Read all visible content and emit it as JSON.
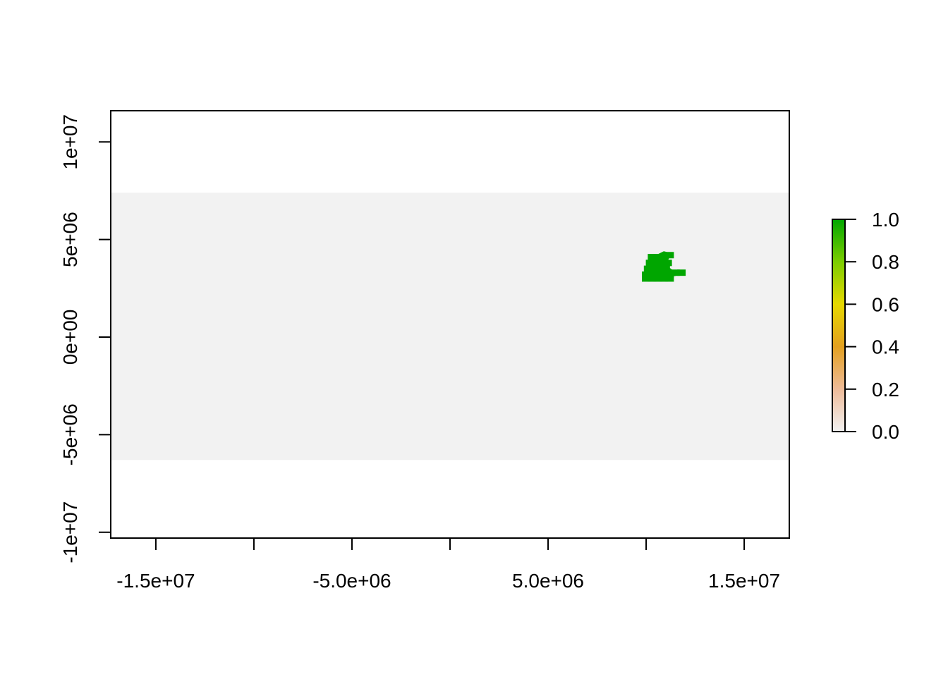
{
  "chart_data": {
    "type": "heatmap",
    "title": "",
    "xlabel": "",
    "ylabel": "",
    "xlim": [
      -17300000,
      17300000
    ],
    "ylim": [
      -10300000,
      11600000
    ],
    "x_ticks": [
      {
        "value": -15000000,
        "label": "-1.5e+07"
      },
      {
        "value": -10000000,
        "label": ""
      },
      {
        "value": -5000000,
        "label": "-5.0e+06"
      },
      {
        "value": 0,
        "label": ""
      },
      {
        "value": 5000000,
        "label": "5.0e+06"
      },
      {
        "value": 10000000,
        "label": ""
      },
      {
        "value": 15000000,
        "label": "1.5e+07"
      }
    ],
    "y_ticks": [
      {
        "value": -10000000,
        "label": "-1e+07"
      },
      {
        "value": -5000000,
        "label": "-5e+06"
      },
      {
        "value": 0,
        "label": "0e+00"
      },
      {
        "value": 5000000,
        "label": "5e+06"
      },
      {
        "value": 10000000,
        "label": "1e+07"
      }
    ],
    "raster_extent": {
      "xmin": -17300000,
      "xmax": 17300000,
      "ymin": -6300000,
      "ymax": 7400000
    },
    "na_fill_color": "#f2f2f2",
    "present_value": 1.0,
    "present_region": {
      "note_values": "cells with value 1.0",
      "cells": [
        [
          10300000,
          4100000
        ],
        [
          10600000,
          4100000
        ],
        [
          10900000,
          4100000
        ],
        [
          11200000,
          4200000
        ],
        [
          10200000,
          3800000
        ],
        [
          10500000,
          3800000
        ],
        [
          10800000,
          3800000
        ],
        [
          11100000,
          3800000
        ],
        [
          10100000,
          3500000
        ],
        [
          10400000,
          3500000
        ],
        [
          10700000,
          3500000
        ],
        [
          11000000,
          3500000
        ],
        [
          10000000,
          3200000
        ],
        [
          10300000,
          3200000
        ],
        [
          10600000,
          3200000
        ],
        [
          10900000,
          3200000
        ],
        [
          11200000,
          3200000
        ],
        [
          11500000,
          3300000
        ],
        [
          11800000,
          3300000
        ],
        [
          10000000,
          3000000
        ],
        [
          10300000,
          3000000
        ],
        [
          10600000,
          3000000
        ],
        [
          10900000,
          3000000
        ],
        [
          11200000,
          3000000
        ]
      ]
    },
    "legend": {
      "position": "right",
      "ticks": [
        "0.0",
        "0.2",
        "0.4",
        "0.6",
        "0.8",
        "1.0"
      ],
      "range": [
        0.0,
        1.0
      ],
      "color_stops": [
        "#f2f2f2",
        "#eebb99",
        "#e3a020",
        "#e6d800",
        "#7ccd00",
        "#00a600"
      ]
    },
    "colors": {
      "present": "#00a600"
    }
  }
}
